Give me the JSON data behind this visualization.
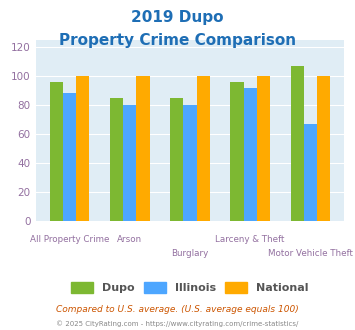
{
  "title_line1": "2019 Dupo",
  "title_line2": "Property Crime Comparison",
  "categories": [
    "All Property Crime",
    "Arson",
    "Burglary",
    "Larceny & Theft",
    "Motor Vehicle Theft"
  ],
  "dupo": [
    96,
    85,
    85,
    96,
    107
  ],
  "illinois": [
    88,
    80,
    80,
    92,
    67
  ],
  "national": [
    100,
    100,
    100,
    100,
    100
  ],
  "bar_colors": {
    "dupo": "#7db832",
    "illinois": "#4da6ff",
    "national": "#ffaa00"
  },
  "ylim": [
    0,
    125
  ],
  "yticks": [
    0,
    20,
    40,
    60,
    80,
    100,
    120
  ],
  "title_fontsize1": 11,
  "title_fontsize2": 11,
  "title_color": "#1e6eb5",
  "axis_label_color": "#9370a0",
  "legend_labels": [
    "Dupo",
    "Illinois",
    "National"
  ],
  "footnote1": "Compared to U.S. average. (U.S. average equals 100)",
  "footnote2": "© 2025 CityRating.com - https://www.cityrating.com/crime-statistics/",
  "plot_bg_color": "#e0edf5",
  "fig_bg_color": "#ffffff",
  "grid_color": "#ffffff",
  "bar_width": 0.22
}
